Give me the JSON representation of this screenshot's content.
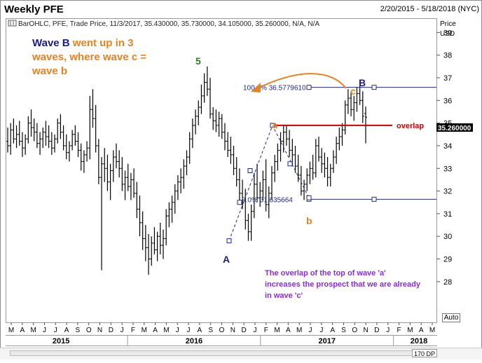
{
  "header": {
    "title": "Weekly PFE",
    "date_range": "2/20/2015 - 5/18/2018 (NYC)",
    "legend_line": "BarOHLC, PFE, Trade Price, 11/3/2017, 35.430000, 35.730000, 34.105000, 35.260000, N/A, N/A"
  },
  "axis": {
    "price_label_1": "Price",
    "price_label_2": "USD",
    "last_price": "35.260000",
    "auto_label": "Auto",
    "zoom": "170 DP"
  },
  "annotations": {
    "wave_b_part1": "Wave B",
    "wave_b_part2": " went up in 3",
    "wave_b_line2": "waves, where wave c =",
    "wave_b_line3": "wave b",
    "overlap_label": "overlap",
    "fib_100": "100.0% 36.5779610",
    "fib_0": "0.0%  31.635664",
    "note_line1": "The overlap of the top of wave 'a'",
    "note_line2": "increases the prospect that we are already",
    "note_line3": "in wave 'c'",
    "wave_5": "5",
    "wave_A": "A",
    "wave_B": "B",
    "wave_a": "a",
    "wave_b": "b",
    "wave_c": "c"
  },
  "colors": {
    "bars": "#000000",
    "annotation_blue": "#1a1a8c",
    "annotation_orange": "#e8821e",
    "overlap_red": "#d40000",
    "wave5_green": "#2e7d1e",
    "note_purple": "#8a2be2",
    "fib_line": "#1f2a8a"
  },
  "chart_data": {
    "type": "bar",
    "subtype": "ohlc",
    "title": "Weekly PFE",
    "ylabel": "Price USD",
    "ylim": [
      26.2,
      39.6
    ],
    "yticks": [
      28,
      29,
      30,
      31,
      32,
      33,
      34,
      35,
      36,
      37,
      38,
      39
    ],
    "x_month_labels": [
      "M",
      "A",
      "M",
      "J",
      "J",
      "A",
      "S",
      "O",
      "N",
      "D",
      "J",
      "F",
      "M",
      "A",
      "M",
      "J",
      "J",
      "A",
      "S",
      "O",
      "N",
      "D",
      "J",
      "F",
      "M",
      "A",
      "M",
      "J",
      "J",
      "A",
      "S",
      "O",
      "N",
      "D",
      "J",
      "F",
      "M",
      "A",
      "M"
    ],
    "x_year_labels": [
      "2015",
      "2016",
      "2017",
      "2018"
    ],
    "grid": false,
    "last_bar": {
      "date": "11/3/2017",
      "open": 35.43,
      "high": 35.73,
      "low": 34.105,
      "close": 35.26
    },
    "fib_levels": [
      {
        "label": "100.0%",
        "value": 36.577961
      },
      {
        "label": "0.0%",
        "value": 31.635664
      }
    ],
    "overlap_level": 34.9,
    "wave_points": [
      {
        "label": "A",
        "month_index": 19,
        "value": 29.8
      },
      {
        "label": "a",
        "month_index": 24,
        "value": 34.9
      },
      {
        "label": "b",
        "month_index": 27,
        "value": 31.7
      },
      {
        "label": "c",
        "month_index": 31,
        "value": 36.6
      }
    ],
    "series": [
      {
        "values": [
          [
            34.2,
            34.8,
            33.7,
            34.0
          ],
          [
            34.0,
            35.0,
            33.6,
            34.7
          ],
          [
            34.7,
            35.2,
            34.1,
            34.3
          ],
          [
            34.3,
            34.9,
            33.9,
            34.5
          ],
          [
            34.5,
            35.1,
            34.0,
            34.2
          ],
          [
            34.2,
            34.6,
            33.5,
            33.9
          ],
          [
            33.9,
            34.5,
            33.6,
            34.3
          ],
          [
            34.3,
            35.3,
            34.1,
            35.0
          ],
          [
            35.0,
            35.6,
            34.4,
            34.8
          ],
          [
            34.8,
            35.2,
            34.2,
            34.6
          ],
          [
            34.6,
            35.0,
            33.9,
            34.1
          ],
          [
            34.1,
            34.6,
            33.6,
            34.3
          ],
          [
            34.3,
            34.8,
            33.9,
            34.6
          ],
          [
            34.6,
            35.1,
            34.0,
            34.4
          ],
          [
            34.4,
            34.9,
            33.9,
            34.2
          ],
          [
            34.2,
            34.6,
            33.6,
            33.9
          ],
          [
            33.9,
            34.5,
            33.7,
            34.3
          ],
          [
            34.3,
            35.2,
            34.1,
            35.0
          ],
          [
            35.0,
            35.4,
            34.3,
            34.6
          ],
          [
            34.6,
            34.9,
            33.8,
            34.0
          ],
          [
            34.0,
            34.5,
            33.4,
            33.7
          ],
          [
            33.7,
            34.2,
            33.3,
            34.0
          ],
          [
            34.0,
            34.7,
            33.8,
            34.5
          ],
          [
            34.5,
            34.9,
            34.0,
            34.2
          ],
          [
            34.2,
            34.6,
            33.5,
            33.8
          ],
          [
            33.8,
            34.1,
            32.9,
            33.3
          ],
          [
            33.3,
            33.8,
            32.8,
            33.6
          ],
          [
            33.6,
            34.2,
            33.3,
            33.9
          ],
          [
            33.9,
            36.2,
            33.4,
            35.6
          ],
          [
            35.6,
            36.5,
            34.8,
            35.2
          ],
          [
            35.2,
            35.8,
            33.7,
            34.0
          ],
          [
            34.0,
            34.3,
            32.3,
            32.6
          ],
          [
            32.6,
            33.5,
            28.5,
            33.2
          ],
          [
            33.2,
            33.9,
            32.4,
            33.0
          ],
          [
            33.0,
            33.6,
            32.0,
            32.4
          ],
          [
            32.4,
            33.2,
            31.6,
            32.9
          ],
          [
            32.9,
            33.8,
            32.4,
            33.5
          ],
          [
            33.5,
            34.1,
            33.0,
            33.3
          ],
          [
            33.3,
            33.8,
            32.6,
            33.0
          ],
          [
            33.0,
            33.5,
            32.0,
            32.3
          ],
          [
            32.3,
            32.9,
            31.6,
            32.6
          ],
          [
            32.6,
            33.2,
            32.0,
            32.2
          ],
          [
            32.2,
            32.8,
            31.6,
            32.5
          ],
          [
            32.5,
            33.0,
            31.7,
            31.9
          ],
          [
            31.9,
            32.4,
            30.8,
            31.2
          ],
          [
            31.2,
            31.8,
            30.0,
            30.6
          ],
          [
            30.6,
            31.1,
            29.4,
            29.9
          ],
          [
            29.9,
            30.5,
            28.9,
            29.5
          ],
          [
            29.5,
            30.1,
            28.3,
            29.0
          ],
          [
            29.0,
            30.0,
            28.7,
            29.7
          ],
          [
            29.7,
            30.4,
            29.2,
            29.4
          ],
          [
            29.4,
            30.2,
            28.9,
            30.0
          ],
          [
            30.0,
            30.6,
            29.2,
            29.6
          ],
          [
            29.6,
            30.3,
            29.0,
            29.9
          ],
          [
            29.9,
            31.2,
            29.6,
            30.9
          ],
          [
            30.9,
            31.5,
            30.4,
            31.2
          ],
          [
            31.2,
            31.8,
            30.6,
            31.5
          ],
          [
            31.5,
            32.3,
            31.0,
            32.0
          ],
          [
            32.0,
            32.7,
            31.6,
            32.4
          ],
          [
            32.4,
            33.0,
            31.9,
            32.6
          ],
          [
            32.6,
            33.4,
            32.1,
            33.1
          ],
          [
            33.1,
            33.8,
            32.7,
            33.5
          ],
          [
            33.5,
            34.6,
            33.2,
            34.3
          ],
          [
            34.3,
            35.2,
            33.9,
            34.9
          ],
          [
            34.9,
            35.6,
            34.5,
            35.3
          ],
          [
            35.3,
            36.0,
            34.9,
            35.7
          ],
          [
            35.7,
            36.7,
            35.4,
            36.2
          ],
          [
            36.2,
            37.2,
            35.9,
            36.8
          ],
          [
            36.8,
            37.5,
            36.2,
            36.5
          ],
          [
            36.5,
            37.0,
            35.2,
            35.4
          ],
          [
            35.4,
            35.7,
            34.7,
            35.1
          ],
          [
            35.1,
            35.6,
            34.6,
            34.9
          ],
          [
            34.9,
            35.5,
            34.4,
            35.2
          ],
          [
            35.2,
            35.4,
            34.3,
            34.6
          ],
          [
            34.6,
            35.0,
            33.8,
            34.2
          ],
          [
            34.2,
            34.6,
            33.5,
            33.8
          ],
          [
            33.8,
            34.4,
            33.2,
            33.6
          ],
          [
            33.6,
            34.0,
            32.7,
            33.0
          ],
          [
            33.0,
            33.5,
            32.2,
            32.5
          ],
          [
            32.5,
            33.0,
            31.6,
            31.9
          ],
          [
            31.9,
            32.5,
            31.2,
            31.6
          ],
          [
            31.6,
            32.1,
            30.3,
            30.7
          ],
          [
            30.7,
            31.0,
            29.8,
            30.2
          ],
          [
            30.2,
            31.4,
            29.8,
            31.1
          ],
          [
            31.1,
            32.8,
            30.8,
            32.3
          ],
          [
            32.3,
            33.2,
            31.5,
            31.7
          ],
          [
            31.7,
            32.4,
            31.3,
            32.0
          ],
          [
            32.0,
            32.9,
            31.6,
            32.5
          ],
          [
            32.5,
            33.4,
            31.1,
            31.4
          ],
          [
            31.4,
            32.2,
            30.8,
            31.9
          ],
          [
            31.9,
            33.1,
            31.6,
            32.8
          ],
          [
            32.8,
            33.6,
            32.4,
            33.3
          ],
          [
            33.3,
            34.1,
            32.9,
            33.8
          ],
          [
            33.8,
            34.6,
            33.3,
            34.2
          ],
          [
            34.2,
            34.9,
            33.7,
            34.6
          ],
          [
            34.6,
            34.9,
            34.0,
            34.3
          ],
          [
            34.3,
            34.7,
            33.5,
            33.8
          ],
          [
            33.8,
            34.3,
            33.1,
            33.6
          ],
          [
            33.6,
            34.0,
            32.8,
            33.1
          ],
          [
            33.1,
            33.6,
            32.4,
            32.7
          ],
          [
            32.7,
            33.1,
            31.8,
            32.0
          ],
          [
            32.0,
            32.5,
            31.6,
            32.3
          ],
          [
            32.3,
            33.0,
            32.0,
            32.7
          ],
          [
            32.7,
            33.3,
            32.3,
            33.0
          ],
          [
            33.0,
            33.6,
            32.5,
            32.8
          ],
          [
            32.8,
            34.3,
            32.6,
            34.0
          ],
          [
            34.0,
            34.4,
            33.3,
            33.5
          ],
          [
            33.5,
            33.9,
            32.8,
            33.2
          ],
          [
            33.2,
            33.7,
            32.6,
            33.0
          ],
          [
            33.0,
            33.5,
            32.2,
            32.6
          ],
          [
            32.6,
            33.2,
            32.2,
            33.0
          ],
          [
            33.0,
            33.8,
            32.8,
            33.5
          ],
          [
            33.5,
            34.4,
            33.2,
            34.1
          ],
          [
            34.1,
            34.8,
            33.8,
            34.4
          ],
          [
            34.4,
            35.0,
            34.0,
            34.7
          ],
          [
            34.7,
            36.0,
            34.5,
            35.8
          ],
          [
            35.8,
            36.5,
            35.4,
            36.1
          ],
          [
            36.1,
            36.4,
            35.3,
            35.6
          ],
          [
            35.6,
            36.2,
            35.1,
            35.9
          ],
          [
            35.9,
            36.6,
            35.5,
            36.3
          ],
          [
            36.3,
            36.8,
            35.8,
            36.0
          ],
          [
            36.0,
            36.4,
            35.0,
            35.3
          ],
          [
            35.43,
            35.73,
            34.105,
            35.26
          ]
        ]
      }
    ]
  }
}
